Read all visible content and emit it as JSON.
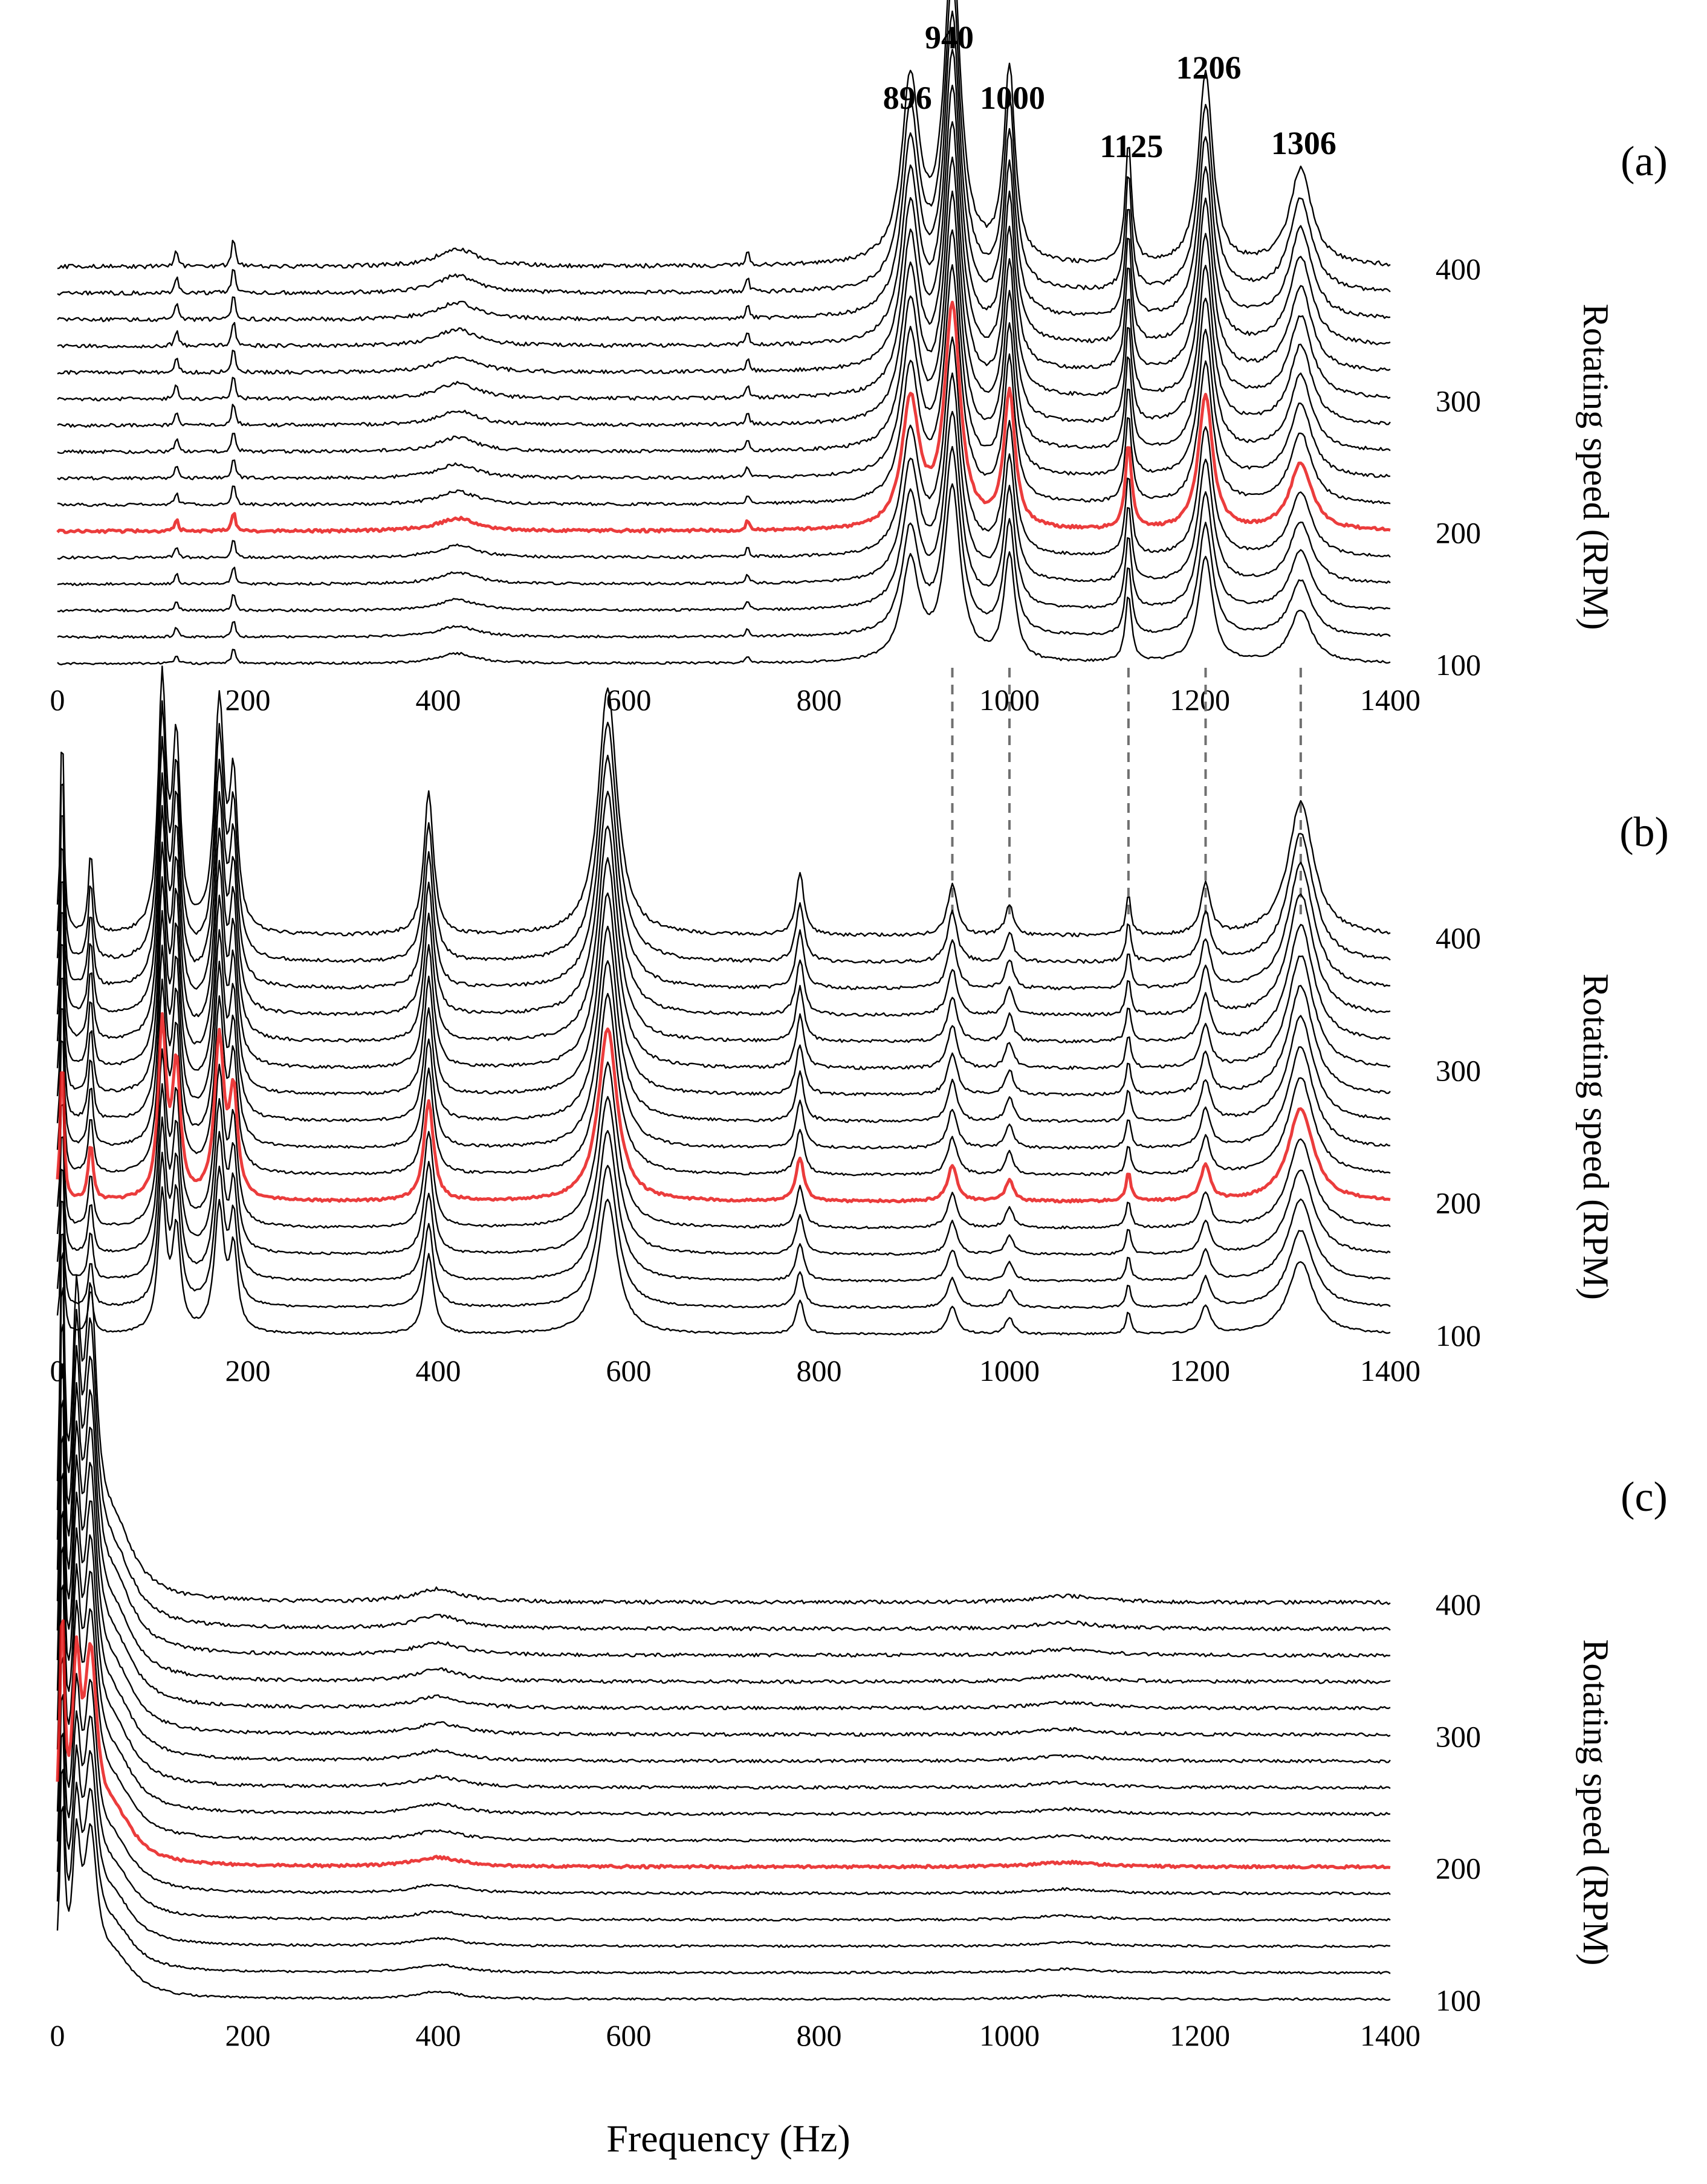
{
  "figure": {
    "x_axis_title": "Frequency (Hz)",
    "colors": {
      "trace": "#000000",
      "highlight": "#e81a1a",
      "guide": "#707070",
      "background": "#ffffff"
    }
  },
  "chart_data": [
    {
      "type": "line",
      "panel": "(a)",
      "title": "",
      "xlabel": "",
      "ylabel": "Rotating speed (RPM)",
      "xlim": [
        0,
        1400
      ],
      "ylim": [
        100,
        400
      ],
      "x_ticks": [
        "0",
        "200",
        "400",
        "600",
        "800",
        "1000",
        "1200",
        "1400"
      ],
      "y_ticks": [
        "100",
        "200",
        "300",
        "400"
      ],
      "series_rpm": [
        100,
        120,
        140,
        160,
        180,
        200,
        220,
        240,
        260,
        280,
        300,
        320,
        340,
        360,
        380,
        400
      ],
      "highlight_rpm": 200,
      "peaks_hz": [
        {
          "hz": 896,
          "height": 1.5,
          "width": 11
        },
        {
          "hz": 940,
          "height": 2.6,
          "width": 10
        },
        {
          "hz": 1000,
          "height": 1.6,
          "width": 7
        },
        {
          "hz": 1125,
          "height": 1.0,
          "width": 4
        },
        {
          "hz": 1206,
          "height": 1.6,
          "width": 9
        },
        {
          "hz": 1306,
          "height": 0.8,
          "width": 14
        },
        {
          "hz": 420,
          "height": 0.15,
          "width": 25
        },
        {
          "hz": 185,
          "height": 0.25,
          "width": 2
        },
        {
          "hz": 125,
          "height": 0.15,
          "width": 2
        },
        {
          "hz": 725,
          "height": 0.12,
          "width": 2
        }
      ],
      "annotations": [
        {
          "text": "940",
          "x": 940
        },
        {
          "text": "896",
          "x": 896
        },
        {
          "text": "1000",
          "x": 1000
        },
        {
          "text": "1125",
          "x": 1125
        },
        {
          "text": "1206",
          "x": 1206
        },
        {
          "text": "1306",
          "x": 1306
        }
      ],
      "guide_lines_hz": [
        940,
        1000,
        1125,
        1206,
        1306
      ]
    },
    {
      "type": "line",
      "panel": "(b)",
      "title": "",
      "xlabel": "",
      "ylabel": "Rotating speed (RPM)",
      "xlim": [
        0,
        1400
      ],
      "ylim": [
        100,
        400
      ],
      "x_ticks": [
        "0",
        "200",
        "400",
        "600",
        "800",
        "1000",
        "1200",
        "1400"
      ],
      "y_ticks": [
        "100",
        "200",
        "300",
        "400"
      ],
      "series_rpm": [
        100,
        120,
        140,
        160,
        180,
        200,
        220,
        240,
        260,
        280,
        300,
        320,
        340,
        360,
        380,
        400
      ],
      "highlight_rpm": 200,
      "peaks_hz": [
        {
          "hz": 5,
          "height": 2.2,
          "width": 2
        },
        {
          "hz": 35,
          "height": 0.8,
          "width": 3
        },
        {
          "hz": 110,
          "height": 2.4,
          "width": 5
        },
        {
          "hz": 125,
          "height": 1.8,
          "width": 5
        },
        {
          "hz": 170,
          "height": 2.2,
          "width": 6
        },
        {
          "hz": 185,
          "height": 1.4,
          "width": 5
        },
        {
          "hz": 390,
          "height": 1.4,
          "width": 6
        },
        {
          "hz": 578,
          "height": 2.4,
          "width": 12
        },
        {
          "hz": 780,
          "height": 0.6,
          "width": 5
        },
        {
          "hz": 940,
          "height": 0.5,
          "width": 6
        },
        {
          "hz": 1000,
          "height": 0.3,
          "width": 5
        },
        {
          "hz": 1125,
          "height": 0.4,
          "width": 3
        },
        {
          "hz": 1206,
          "height": 0.5,
          "width": 6
        },
        {
          "hz": 1306,
          "height": 1.3,
          "width": 16
        }
      ]
    },
    {
      "type": "line",
      "panel": "(c)",
      "title": "",
      "xlabel": "Frequency (Hz)",
      "ylabel": "Rotating speed (RPM)",
      "xlim": [
        0,
        1400
      ],
      "ylim": [
        100,
        400
      ],
      "x_ticks": [
        "0",
        "200",
        "400",
        "600",
        "800",
        "1000",
        "1200",
        "1400"
      ],
      "y_ticks": [
        "100",
        "200",
        "300",
        "400"
      ],
      "series_rpm": [
        100,
        120,
        140,
        160,
        180,
        200,
        220,
        240,
        260,
        280,
        300,
        320,
        340,
        360,
        380,
        400
      ],
      "highlight_rpm": 200,
      "peaks_hz": [
        {
          "hz": 5,
          "height": 3.0,
          "width": 3
        },
        {
          "hz": 20,
          "height": 2.2,
          "width": 5
        },
        {
          "hz": 35,
          "height": 2.4,
          "width": 8
        },
        {
          "hz": 60,
          "height": 0.6,
          "width": 25
        },
        {
          "hz": 400,
          "height": 0.12,
          "width": 30
        },
        {
          "hz": 1060,
          "height": 0.06,
          "width": 40
        }
      ]
    }
  ]
}
